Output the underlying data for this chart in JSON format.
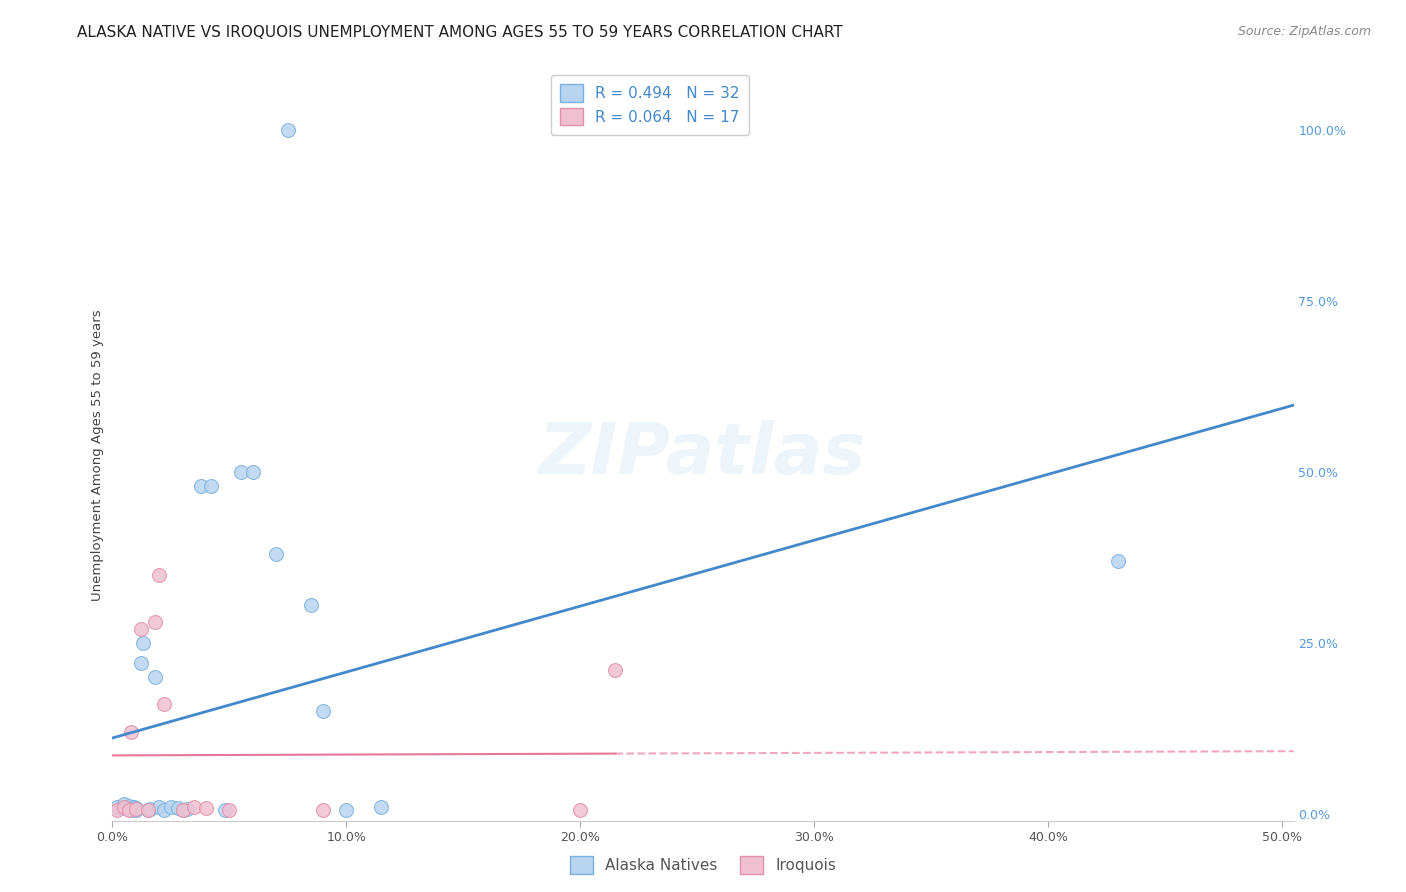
{
  "title": "ALASKA NATIVE VS IROQUOIS UNEMPLOYMENT AMONG AGES 55 TO 59 YEARS CORRELATION CHART",
  "source": "Source: ZipAtlas.com",
  "ylabel": "Unemployment Among Ages 55 to 59 years",
  "xlim": [
    0.0,
    0.505
  ],
  "ylim": [
    -0.01,
    1.06
  ],
  "xticks": [
    0.0,
    0.1,
    0.2,
    0.3,
    0.4,
    0.5
  ],
  "xticklabels": [
    "0.0%",
    "10.0%",
    "20.0%",
    "30.0%",
    "40.0%",
    "50.0%"
  ],
  "yticks_right": [
    0.0,
    0.25,
    0.5,
    0.75,
    1.0
  ],
  "yticklabels_right": [
    "0.0%",
    "25.0%",
    "50.0%",
    "75.0%",
    "100.0%"
  ],
  "background_color": "#ffffff",
  "grid_color": "#cccccc",
  "alaska_color": "#b8d4f0",
  "alaska_edge_color": "#7ab0e0",
  "iroquois_color": "#f0c0d0",
  "iroquois_edge_color": "#e090a8",
  "alaska_line_color": "#4488cc",
  "iroquois_line_color": "#e87898",
  "alaska_R": 0.494,
  "alaska_N": 32,
  "iroquois_R": 0.064,
  "iroquois_N": 17,
  "alaska_x": [
    0.002,
    0.004,
    0.005,
    0.006,
    0.007,
    0.008,
    0.009,
    0.01,
    0.01,
    0.012,
    0.013,
    0.015,
    0.016,
    0.018,
    0.02,
    0.022,
    0.025,
    0.028,
    0.03,
    0.032,
    0.038,
    0.042,
    0.048,
    0.055,
    0.06,
    0.07,
    0.075,
    0.085,
    0.09,
    0.115,
    0.43,
    0.1
  ],
  "alaska_y": [
    0.01,
    0.008,
    0.015,
    0.01,
    0.012,
    0.006,
    0.01,
    0.005,
    0.008,
    0.22,
    0.25,
    0.005,
    0.007,
    0.2,
    0.01,
    0.006,
    0.01,
    0.008,
    0.005,
    0.007,
    0.48,
    0.48,
    0.005,
    0.5,
    0.5,
    0.38,
    1.0,
    0.305,
    0.15,
    0.01,
    0.37,
    0.005
  ],
  "iroquois_x": [
    0.002,
    0.005,
    0.007,
    0.008,
    0.01,
    0.012,
    0.015,
    0.018,
    0.02,
    0.022,
    0.03,
    0.035,
    0.04,
    0.05,
    0.09,
    0.2,
    0.215
  ],
  "iroquois_y": [
    0.005,
    0.01,
    0.005,
    0.12,
    0.007,
    0.27,
    0.005,
    0.28,
    0.35,
    0.16,
    0.005,
    0.01,
    0.008,
    0.006,
    0.006,
    0.005,
    0.21
  ],
  "legend_alaska_label": "Alaska Natives",
  "legend_iroquois_label": "Iroquois",
  "marker_size": 100,
  "watermark_text": "ZIPatlas",
  "title_fontsize": 11,
  "axis_label_fontsize": 9.5,
  "tick_fontsize": 9,
  "legend_fontsize": 11,
  "source_fontsize": 9
}
